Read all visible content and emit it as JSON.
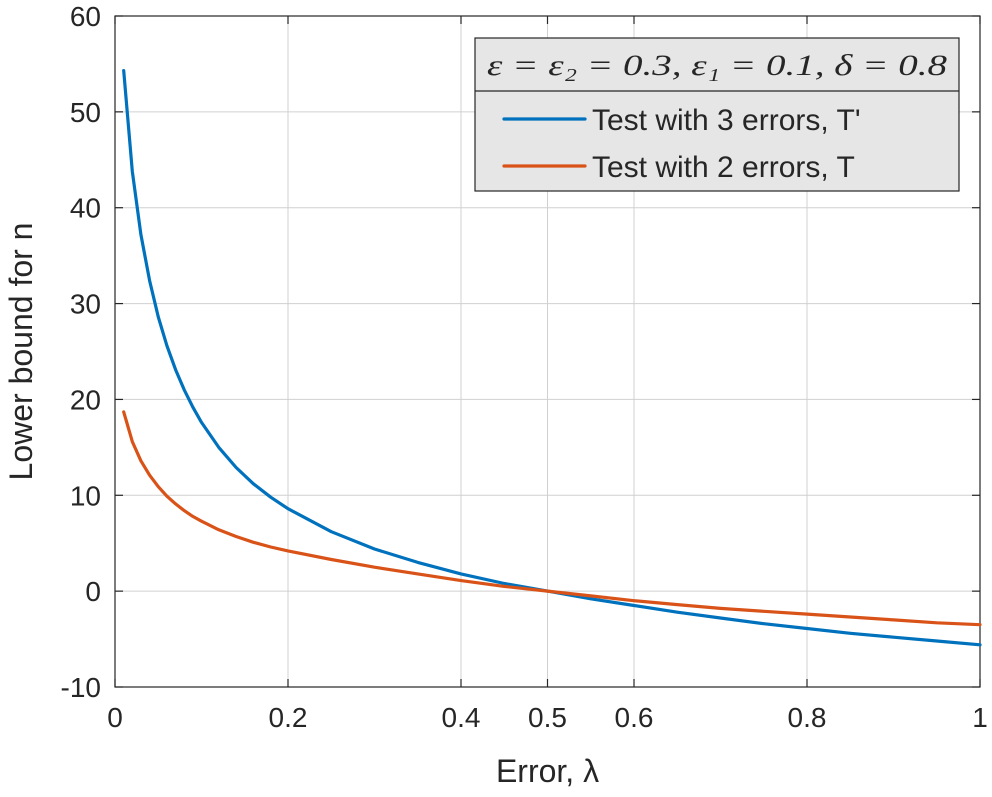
{
  "chart_data": {
    "type": "line",
    "title": "",
    "xlabel": "Error, λ",
    "ylabel": "Lower bound for n",
    "xlim": [
      0,
      1
    ],
    "ylim": [
      -10,
      60
    ],
    "xticks": [
      0,
      0.2,
      0.4,
      0.5,
      0.6,
      0.8,
      1
    ],
    "xtick_labels": [
      "0",
      "0.2",
      "0.4",
      "0.5",
      "0.6",
      "0.8",
      "1"
    ],
    "yticks": [
      -10,
      0,
      10,
      20,
      30,
      40,
      50,
      60
    ],
    "ytick_labels": [
      "-10",
      "0",
      "10",
      "20",
      "30",
      "40",
      "50",
      "60"
    ],
    "grid": true,
    "legend_position": "top-right",
    "legend_title": "ε = ε₂ = 0.3, ε₁ = 0.1, δ = 0.8",
    "series": [
      {
        "name": "Test with 3 errors, T'",
        "color": "#0072BD",
        "x": [
          0.01,
          0.02,
          0.03,
          0.04,
          0.05,
          0.06,
          0.07,
          0.08,
          0.09,
          0.1,
          0.12,
          0.14,
          0.16,
          0.18,
          0.2,
          0.25,
          0.3,
          0.35,
          0.4,
          0.45,
          0.5,
          0.55,
          0.6,
          0.65,
          0.7,
          0.75,
          0.8,
          0.85,
          0.9,
          0.95,
          1.0
        ],
        "y": [
          54.3,
          43.8,
          37.2,
          32.4,
          28.6,
          25.6,
          23.1,
          21.0,
          19.2,
          17.6,
          15.0,
          12.9,
          11.2,
          9.8,
          8.6,
          6.2,
          4.4,
          3.0,
          1.8,
          0.8,
          0.0,
          -0.8,
          -1.5,
          -2.2,
          -2.8,
          -3.4,
          -3.9,
          -4.4,
          -4.8,
          -5.2,
          -5.6
        ]
      },
      {
        "name": "Test with 2 errors, T",
        "color": "#D95319",
        "x": [
          0.01,
          0.02,
          0.03,
          0.04,
          0.05,
          0.06,
          0.07,
          0.08,
          0.09,
          0.1,
          0.12,
          0.14,
          0.16,
          0.18,
          0.2,
          0.25,
          0.3,
          0.35,
          0.4,
          0.45,
          0.5,
          0.55,
          0.6,
          0.65,
          0.7,
          0.75,
          0.8,
          0.85,
          0.9,
          0.95,
          1.0
        ],
        "y": [
          18.7,
          15.6,
          13.6,
          12.1,
          10.9,
          9.9,
          9.1,
          8.4,
          7.8,
          7.3,
          6.4,
          5.7,
          5.1,
          4.6,
          4.2,
          3.3,
          2.5,
          1.8,
          1.1,
          0.5,
          0.0,
          -0.5,
          -1.0,
          -1.4,
          -1.8,
          -2.1,
          -2.4,
          -2.7,
          -3.0,
          -3.3,
          -3.5
        ]
      }
    ]
  }
}
